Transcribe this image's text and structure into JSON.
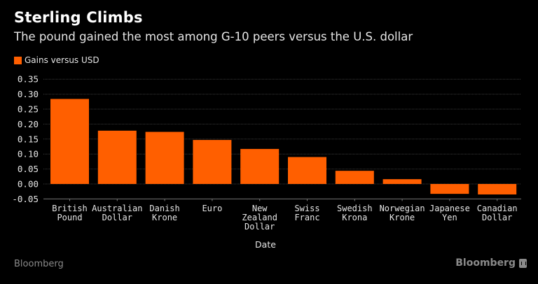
{
  "header": {
    "title": "Sterling Climbs",
    "subtitle": "The pound gained the most among G-10 peers versus the U.S. dollar"
  },
  "footer": {
    "source_left": "Bloomberg",
    "logo_right": "Bloomberg"
  },
  "colors": {
    "bar": "#ff5f00",
    "background": "#000000",
    "grid": "#3a3a3a",
    "axis": "#777777",
    "tick_text": "#e6e6e6"
  },
  "chart_data": {
    "type": "bar",
    "title": "Sterling Climbs",
    "subtitle": "The pound gained the most among G-10 peers versus the U.S. dollar",
    "xlabel": "Date",
    "ylabel": "",
    "legend": {
      "position": "top-left",
      "entries": [
        "Gains versus USD"
      ]
    },
    "grid": true,
    "ylim": [
      -0.05,
      0.35
    ],
    "yticks": [
      "0.35",
      "0.30",
      "0.25",
      "0.20",
      "0.15",
      "0.10",
      "0.05",
      "0.00",
      "-0.05"
    ],
    "ytick_values": [
      0.35,
      0.3,
      0.25,
      0.2,
      0.15,
      0.1,
      0.05,
      0.0,
      -0.05
    ],
    "categories": [
      [
        "British",
        "Pound"
      ],
      [
        "Australian",
        "Dollar"
      ],
      [
        "Danish",
        "Krone"
      ],
      [
        "Euro"
      ],
      [
        "New",
        "Zealand",
        "Dollar"
      ],
      [
        "Swiss",
        "Franc"
      ],
      [
        "Swedish",
        "Krona"
      ],
      [
        "Norwegian",
        "Krone"
      ],
      [
        "Japanese",
        "Yen"
      ],
      [
        "Canadian",
        "Dollar"
      ]
    ],
    "series": [
      {
        "name": "Gains versus USD",
        "values": [
          0.284,
          0.178,
          0.174,
          0.147,
          0.117,
          0.09,
          0.044,
          0.016,
          -0.033,
          -0.035
        ]
      }
    ]
  }
}
